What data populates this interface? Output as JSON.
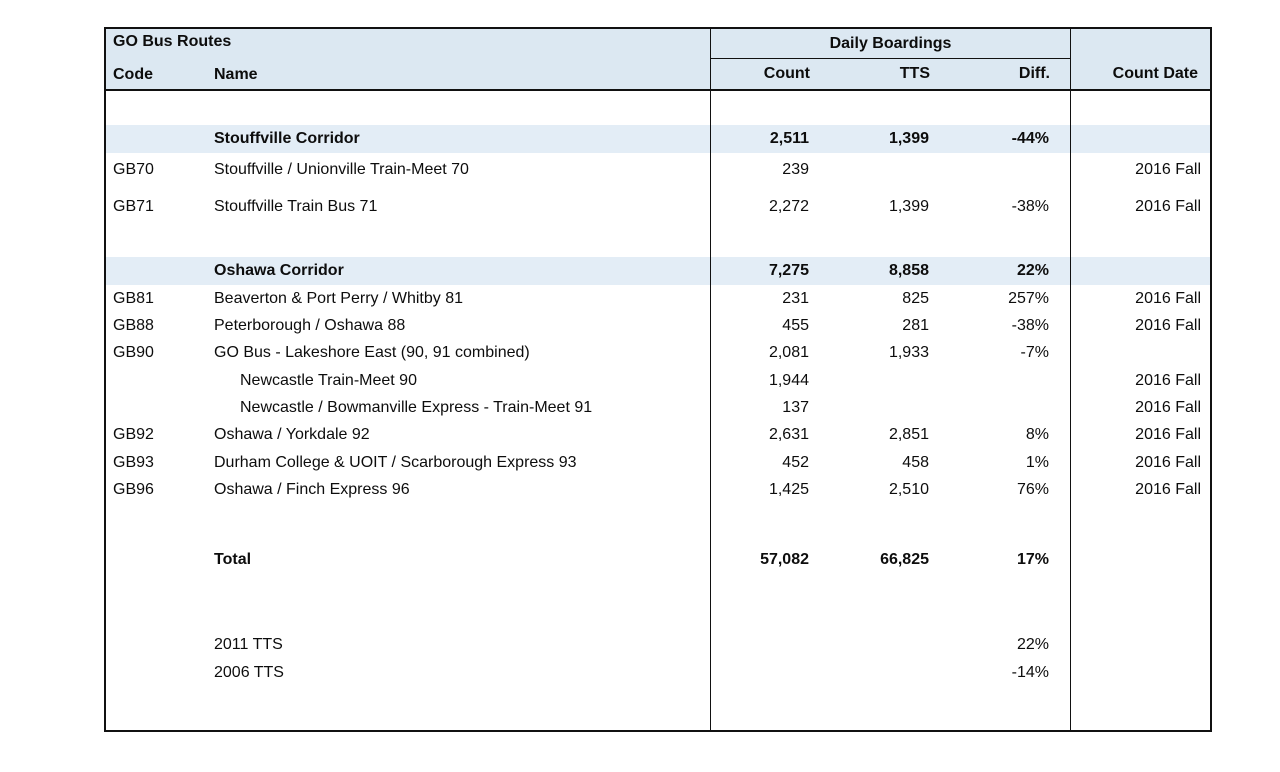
{
  "table": {
    "title": "GO Bus Routes",
    "columns": {
      "code": "Code",
      "name": "Name",
      "group": "Daily Boardings",
      "count": "Count",
      "tts": "TTS",
      "diff": "Diff.",
      "count_date": "Count Date"
    },
    "rows": [
      {
        "type": "section",
        "code": "",
        "name": "Stouffville Corridor",
        "count": "2,511",
        "tts": "1,399",
        "diff": "-44%",
        "date": ""
      },
      {
        "type": "route",
        "code": "GB70",
        "name": "Stouffville / Unionville Train-Meet 70",
        "count": "239",
        "tts": "",
        "diff": "",
        "date": "2016 Fall"
      },
      {
        "type": "route",
        "code": "GB71",
        "name": "Stouffville Train Bus 71",
        "count": "2,272",
        "tts": "1,399",
        "diff": "-38%",
        "date": "2016 Fall"
      },
      {
        "type": "section",
        "code": "",
        "name": "Oshawa Corridor",
        "count": "7,275",
        "tts": "8,858",
        "diff": "22%",
        "date": ""
      },
      {
        "type": "route",
        "code": "GB81",
        "name": "Beaverton & Port Perry / Whitby 81",
        "count": "231",
        "tts": "825",
        "diff": "257%",
        "date": "2016 Fall"
      },
      {
        "type": "route",
        "code": "GB88",
        "name": "Peterborough / Oshawa 88",
        "count": "455",
        "tts": "281",
        "diff": "-38%",
        "date": "2016 Fall"
      },
      {
        "type": "route",
        "code": "GB90",
        "name": "GO Bus - Lakeshore East (90, 91 combined)",
        "count": "2,081",
        "tts": "1,933",
        "diff": "-7%",
        "date": ""
      },
      {
        "type": "subroute",
        "code": "",
        "name": "Newcastle Train-Meet 90",
        "count": "1,944",
        "tts": "",
        "diff": "",
        "date": "2016 Fall"
      },
      {
        "type": "subroute",
        "code": "",
        "name": "Newcastle / Bowmanville Express - Train-Meet 91",
        "count": "137",
        "tts": "",
        "diff": "",
        "date": "2016 Fall"
      },
      {
        "type": "route",
        "code": "GB92",
        "name": "Oshawa / Yorkdale 92",
        "count": "2,631",
        "tts": "2,851",
        "diff": "8%",
        "date": "2016 Fall"
      },
      {
        "type": "route",
        "code": "GB93",
        "name": "Durham College & UOIT / Scarborough Express 93",
        "count": "452",
        "tts": "458",
        "diff": "1%",
        "date": "2016 Fall"
      },
      {
        "type": "route",
        "code": "GB96",
        "name": "Oshawa / Finch Express 96",
        "count": "1,425",
        "tts": "2,510",
        "diff": "76%",
        "date": "2016 Fall"
      },
      {
        "type": "total",
        "code": "",
        "name": "Total",
        "count": "57,082",
        "tts": "66,825",
        "diff": "17%",
        "date": ""
      },
      {
        "type": "tts-ref",
        "code": "",
        "name": "2011 TTS",
        "count": "",
        "tts": "",
        "diff": "22%",
        "date": ""
      },
      {
        "type": "tts-ref",
        "code": "",
        "name": "2006 TTS",
        "count": "",
        "tts": "",
        "diff": "-14%",
        "date": ""
      }
    ]
  },
  "colors": {
    "header_fill": "#dce8f2",
    "section_fill": "#e3edf6",
    "border": "#111111",
    "text": "#0d0d0d"
  }
}
